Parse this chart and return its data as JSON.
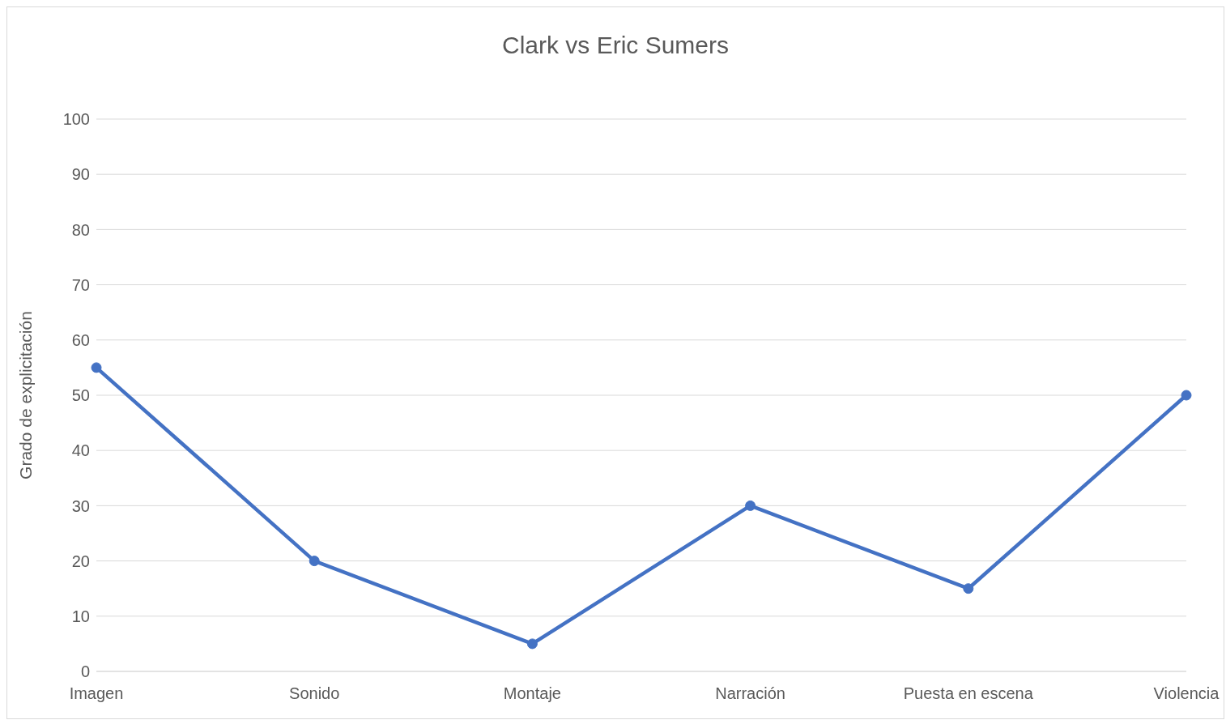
{
  "chart_data": {
    "type": "line",
    "title": "Clark vs Eric Sumers",
    "ylabel": "Grado de explicitación",
    "categories": [
      "Imagen",
      "Sonido",
      "Montaje",
      "Narración",
      "Puesta en escena",
      "Violencia"
    ],
    "series": [
      {
        "color": "#4472c4",
        "values": [
          55,
          20,
          5,
          30,
          15,
          50
        ]
      }
    ],
    "ylim": [
      0,
      100
    ],
    "yticks": [
      0,
      10,
      20,
      30,
      40,
      50,
      60,
      70,
      80,
      90,
      100
    ],
    "grid": "y",
    "marker": "circle",
    "line_style": "solid"
  }
}
